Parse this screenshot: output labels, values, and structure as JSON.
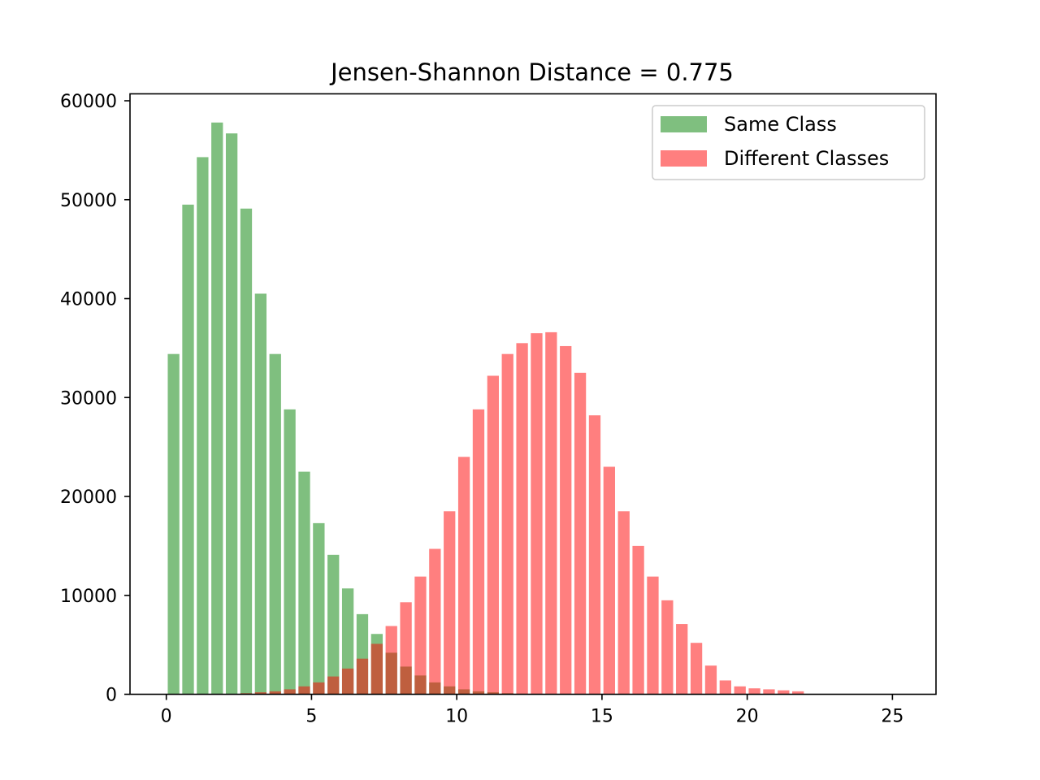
{
  "chart_data": {
    "type": "bar",
    "title": "Jensen-Shannon Distance = 0.775",
    "xlabel": "",
    "ylabel": "",
    "xlim": [
      -1.25,
      26.5
    ],
    "ylim": [
      0,
      60700
    ],
    "xticks": [
      0,
      5,
      10,
      15,
      20,
      25
    ],
    "xtick_labels": [
      "0",
      "5",
      "10",
      "15",
      "20",
      "25"
    ],
    "yticks": [
      0,
      10000,
      20000,
      30000,
      40000,
      50000,
      60000
    ],
    "ytick_labels": [
      "0",
      "10000",
      "20000",
      "30000",
      "40000",
      "50000",
      "60000"
    ],
    "grid": false,
    "legend_position": "top-right",
    "bar_width": 0.4,
    "x": [
      0.25,
      0.75,
      1.25,
      1.75,
      2.25,
      2.75,
      3.25,
      3.75,
      4.25,
      4.75,
      5.25,
      5.75,
      6.25,
      6.75,
      7.25,
      7.75,
      8.25,
      8.75,
      9.25,
      9.75,
      10.25,
      10.75,
      11.25,
      11.75,
      12.25,
      12.75,
      13.25,
      13.75,
      14.25,
      14.75,
      15.25,
      15.75,
      16.25,
      16.75,
      17.25,
      17.75,
      18.25,
      18.75,
      19.25,
      19.75,
      20.25,
      20.75,
      21.25,
      21.75,
      22.25,
      22.75,
      23.25,
      23.75,
      24.25,
      24.75
    ],
    "series": [
      {
        "name": "Same Class",
        "color": "#008000",
        "alpha": 0.5,
        "values": [
          34400,
          49500,
          54300,
          57800,
          56700,
          49100,
          40500,
          34400,
          28800,
          22500,
          17300,
          14100,
          10700,
          8100,
          6100,
          4200,
          2800,
          1900,
          1200,
          800,
          500,
          300,
          200,
          100,
          50,
          30,
          20,
          10,
          0,
          0,
          0,
          0,
          0,
          0,
          0,
          0,
          0,
          0,
          0,
          0,
          0,
          0,
          0,
          0,
          0,
          0,
          0,
          0,
          0,
          0
        ]
      },
      {
        "name": "Different Classes",
        "color": "#ff0000",
        "alpha": 0.5,
        "values": [
          0,
          0,
          0,
          0,
          0,
          100,
          200,
          300,
          500,
          800,
          1200,
          1800,
          2600,
          3600,
          5100,
          6900,
          9300,
          11900,
          14700,
          18500,
          24000,
          28800,
          32200,
          34400,
          35500,
          36500,
          36600,
          35200,
          32500,
          28200,
          23000,
          18500,
          15000,
          11900,
          9500,
          7100,
          5200,
          2900,
          1400,
          800,
          600,
          500,
          400,
          300,
          0,
          0,
          0,
          0,
          0,
          0
        ]
      }
    ]
  }
}
